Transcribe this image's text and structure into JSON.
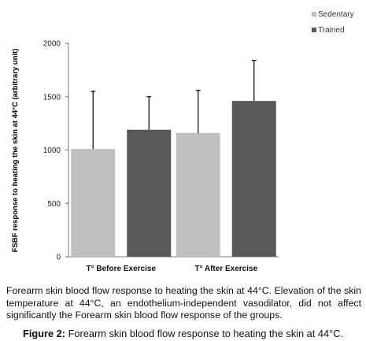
{
  "chart_data": {
    "type": "bar",
    "categories": [
      "T° Before Exercise",
      "T° After Exercise"
    ],
    "series": [
      {
        "name": "Sedentary",
        "values": [
          1010,
          1160
        ],
        "errors": [
          540,
          400
        ],
        "color": "#c0c0c0"
      },
      {
        "name": "Trained",
        "values": [
          1190,
          1460
        ],
        "errors": [
          310,
          380
        ],
        "color": "#595959"
      }
    ],
    "ylabel": "FSBF response to heating the skin at 44°C (arbitrary unit)",
    "ylim": [
      0,
      2000
    ],
    "yticks": [
      0,
      500,
      1000,
      1500,
      2000
    ],
    "grid": false,
    "legend": "top-right",
    "error_bars": "upper"
  },
  "caption": {
    "text": "Forearm skin blood flow response to heating the skin at 44°C. Elevation of the skin temperature at 44°C, an endothelium-independent vasodilator, did not affect significantly the Forearm skin blood flow response of the groups.",
    "figure_label": "Figure 2:",
    "figure_title": " Forearm skin blood flow response to heating the skin at 44°C."
  }
}
